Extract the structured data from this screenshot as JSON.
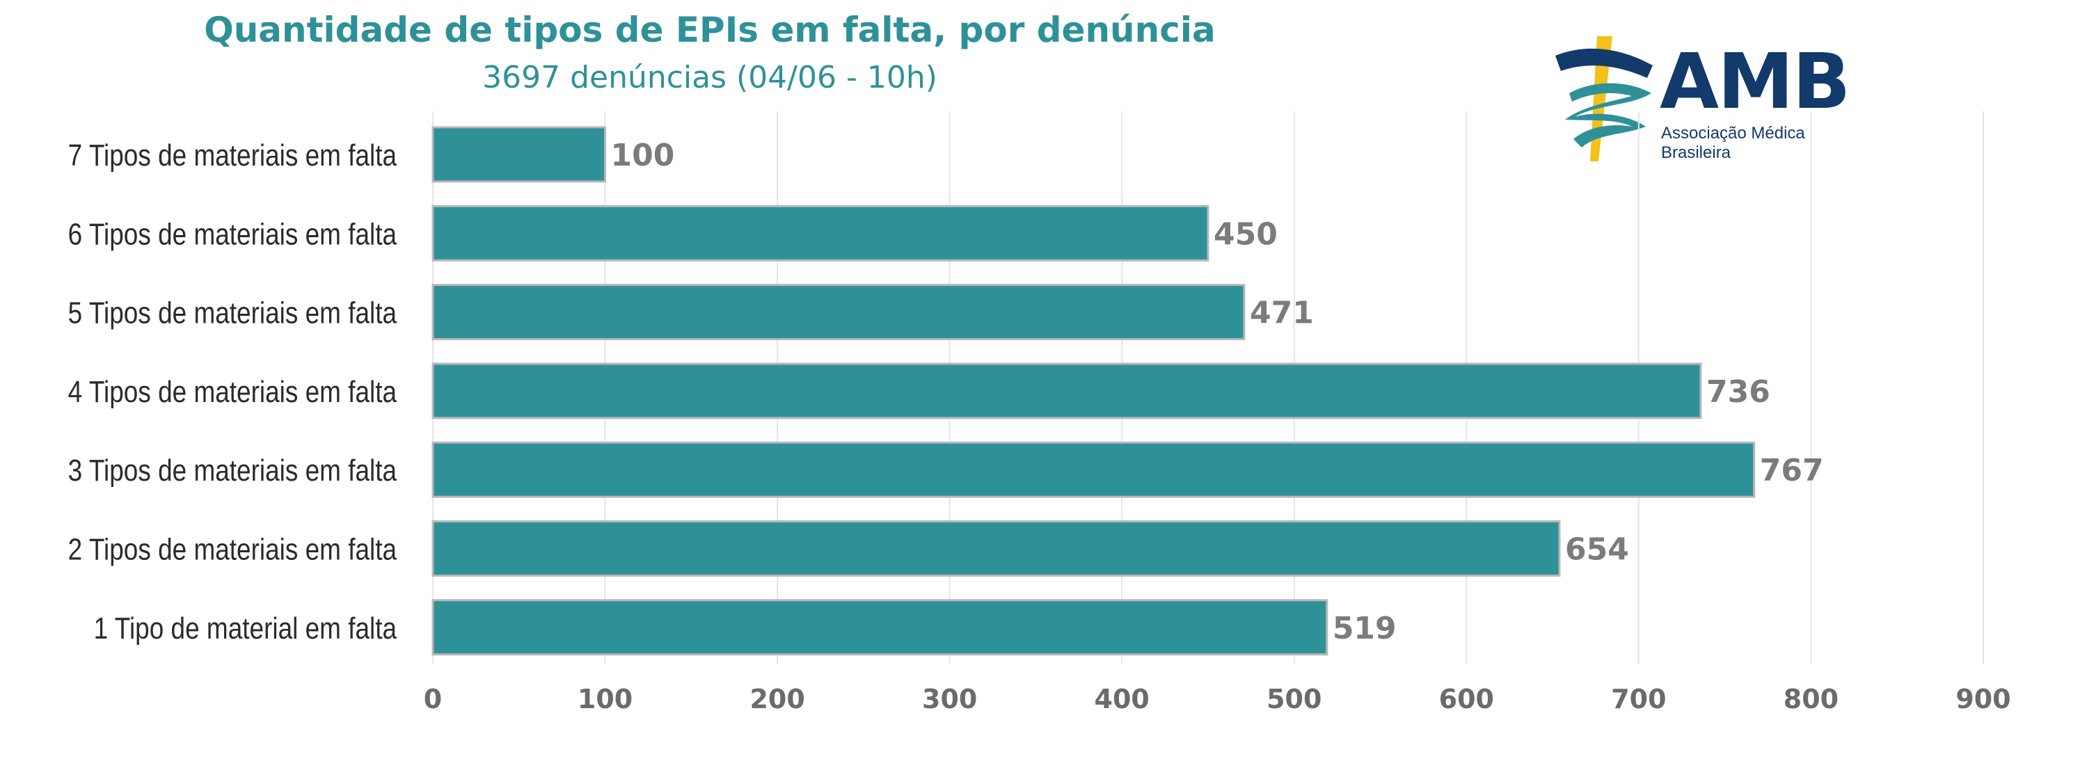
{
  "chart_data": {
    "type": "bar",
    "orientation": "horizontal",
    "title": "Quantidade de tipos de EPIs em falta, por denúncia",
    "subtitle": "3697 denúncias (04/06 - 10h)",
    "categories": [
      "7 Tipos de materiais em falta",
      "6 Tipos de materiais em falta",
      "5 Tipos de materiais em falta",
      "4 Tipos de materiais em falta",
      "3 Tipos de materiais em falta",
      "2 Tipos de materiais em falta",
      "1 Tipo de material em falta"
    ],
    "values": [
      100,
      450,
      471,
      736,
      767,
      654,
      519
    ],
    "xlim": [
      0,
      900
    ],
    "xticks": [
      "0",
      "100",
      "200",
      "300",
      "400",
      "500",
      "600",
      "700",
      "800",
      "900"
    ],
    "grid": "vertical",
    "legend": "none",
    "colors": {
      "bar": "#2f9198",
      "bar_outline": "#b8b8b8",
      "grid": "#e6e6e6"
    }
  },
  "logo": {
    "name": "AMB",
    "tagline": "Associação Médica Brasileira",
    "colors": {
      "primary": "#123a6b",
      "accent_teal": "#2f9198",
      "accent_yellow": "#f2c21b"
    }
  }
}
